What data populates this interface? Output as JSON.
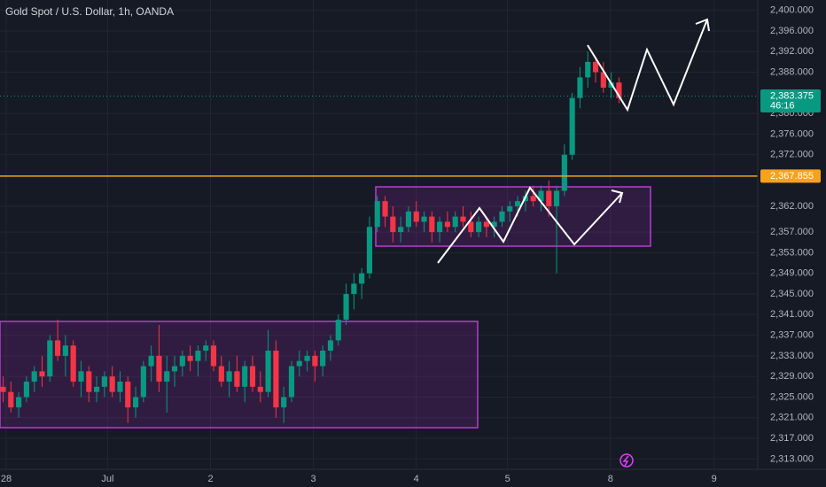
{
  "chart_data": {
    "type": "candlestick",
    "title": "Gold Spot / U.S. Dollar, 1h, OANDA",
    "up_color": "#089981",
    "down_color": "#f23645",
    "open": [
      2327,
      2326,
      2323,
      2325,
      2328,
      2330,
      2329,
      2336,
      2333,
      2335,
      2328,
      2330,
      2326,
      2327,
      2329,
      2326,
      2328,
      2323,
      2325,
      2331,
      2333,
      2328,
      2330,
      2331,
      2333,
      2332,
      2334,
      2335,
      2331,
      2328,
      2330,
      2327,
      2331,
      2327,
      2326,
      2334,
      2323,
      2325,
      2331,
      2332,
      2333,
      2331,
      2334,
      2336,
      2340,
      2345,
      2347,
      2349,
      2358,
      2363,
      2360,
      2357,
      2358,
      2361,
      2359,
      2360,
      2357,
      2359,
      2358,
      2360,
      2359,
      2357,
      2359,
      2358,
      2359,
      2361,
      2362,
      2363,
      2364,
      2363,
      2365,
      2362,
      2365,
      2372,
      2383,
      2387,
      2390,
      2388,
      2385,
      2386
    ],
    "high": [
      2329,
      2328,
      2326,
      2329,
      2331,
      2333,
      2337,
      2340,
      2337,
      2336,
      2332,
      2331,
      2329,
      2330,
      2331,
      2330,
      2329,
      2327,
      2332,
      2335,
      2339,
      2333,
      2333,
      2334,
      2335,
      2335,
      2336,
      2336,
      2333,
      2332,
      2333,
      2332,
      2333,
      2330,
      2338,
      2336,
      2327,
      2332,
      2334,
      2334,
      2334,
      2335,
      2337,
      2341,
      2347,
      2349,
      2350,
      2360,
      2364,
      2364,
      2362,
      2360,
      2362,
      2363,
      2361,
      2361,
      2360,
      2361,
      2361,
      2362,
      2361,
      2360,
      2360,
      2360,
      2362,
      2363,
      2364,
      2365,
      2366,
      2366,
      2367,
      2366,
      2374,
      2384,
      2389,
      2392,
      2391,
      2390,
      2388,
      2387
    ],
    "low": [
      2324,
      2322,
      2321,
      2324,
      2326,
      2327,
      2328,
      2332,
      2329,
      2327,
      2325,
      2324,
      2324,
      2325,
      2325,
      2324,
      2320,
      2321,
      2324,
      2328,
      2326,
      2322,
      2327,
      2329,
      2330,
      2329,
      2332,
      2330,
      2327,
      2325,
      2326,
      2324,
      2326,
      2324,
      2325,
      2321,
      2320,
      2324,
      2329,
      2330,
      2328,
      2329,
      2332,
      2335,
      2339,
      2342,
      2344,
      2348,
      2357,
      2358,
      2355,
      2355,
      2357,
      2358,
      2357,
      2355,
      2355,
      2357,
      2357,
      2358,
      2356,
      2356,
      2356,
      2356,
      2358,
      2359,
      2360,
      2361,
      2362,
      2361,
      2360,
      2349,
      2364,
      2371,
      2381,
      2385,
      2386,
      2384,
      2383,
      2382
    ],
    "close": [
      2326,
      2323,
      2325,
      2328,
      2330,
      2329,
      2336,
      2333,
      2335,
      2328,
      2330,
      2326,
      2327,
      2329,
      2326,
      2328,
      2323,
      2325,
      2331,
      2333,
      2328,
      2330,
      2331,
      2333,
      2332,
      2334,
      2335,
      2331,
      2328,
      2330,
      2327,
      2331,
      2327,
      2326,
      2334,
      2323,
      2325,
      2331,
      2332,
      2333,
      2331,
      2334,
      2336,
      2340,
      2345,
      2347,
      2349,
      2358,
      2363,
      2360,
      2357,
      2358,
      2361,
      2359,
      2360,
      2357,
      2359,
      2358,
      2360,
      2359,
      2357,
      2359,
      2358,
      2359,
      2361,
      2362,
      2363,
      2364,
      2363,
      2365,
      2362,
      2365,
      2372,
      2383,
      2387,
      2390,
      2388,
      2385,
      2386,
      2383
    ],
    "xlim": [
      -0.4,
      96.8
    ],
    "xticks": [
      {
        "value": 0.4,
        "label": "28"
      },
      {
        "value": 13.4,
        "label": "Jul"
      },
      {
        "value": 26.6,
        "label": "2"
      },
      {
        "value": 39.8,
        "label": "3"
      },
      {
        "value": 53,
        "label": "4"
      },
      {
        "value": 64.7,
        "label": "5"
      },
      {
        "value": 77.9,
        "label": "8"
      },
      {
        "value": 91.2,
        "label": "9"
      }
    ],
    "ylim": [
      2311,
      2402
    ],
    "yticks": [
      {
        "value": 2400,
        "label": "2,400.000"
      },
      {
        "value": 2396,
        "label": "2,396.000"
      },
      {
        "value": 2392,
        "label": "2,392.000"
      },
      {
        "value": 2388,
        "label": "2,388.000"
      },
      {
        "value": 2380,
        "label": "2,380.000"
      },
      {
        "value": 2376,
        "label": "2,376.000"
      },
      {
        "value": 2372,
        "label": "2,372.000"
      },
      {
        "value": 2362,
        "label": "2,362.000"
      },
      {
        "value": 2357,
        "label": "2,357.000"
      },
      {
        "value": 2353,
        "label": "2,353.000"
      },
      {
        "value": 2349,
        "label": "2,349.000"
      },
      {
        "value": 2345,
        "label": "2,345.000"
      },
      {
        "value": 2341,
        "label": "2,341.000"
      },
      {
        "value": 2337,
        "label": "2,337.000"
      },
      {
        "value": 2333,
        "label": "2,333.000"
      },
      {
        "value": 2329,
        "label": "2,329.000"
      },
      {
        "value": 2325,
        "label": "2,325.000"
      },
      {
        "value": 2321,
        "label": "2,321.000"
      },
      {
        "value": 2317,
        "label": "2,317.000"
      },
      {
        "value": 2313,
        "label": "2,313.000"
      }
    ],
    "grid": true,
    "price_lines": [
      {
        "value": 2383.375,
        "label": "2,383.375",
        "countdown": "46:16",
        "color": "#089981",
        "style": "dotted"
      },
      {
        "value": 2367.855,
        "label": "2,367.855",
        "color": "#f7a21b",
        "style": "solid"
      }
    ]
  }
}
